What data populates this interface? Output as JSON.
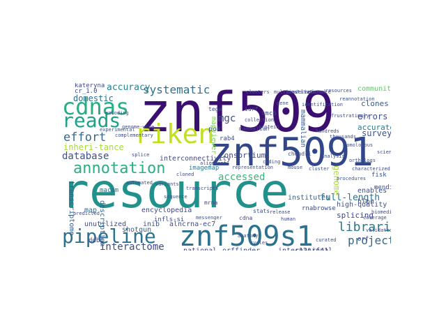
{
  "words": [
    {
      "text": "resource",
      "color": "#21918c"
    },
    {
      "text": "znf509",
      "color": "#3b0f70"
    },
    {
      "text": "znf5091",
      "color": "#31468b"
    },
    {
      "text": "znf509s1",
      "color": "#2c728e"
    },
    {
      "text": "riken",
      "color": "#c2df23"
    },
    {
      "text": "cdnas",
      "color": "#27ad81"
    },
    {
      "text": "reads",
      "color": "#1fa187"
    },
    {
      "text": "pipeline",
      "color": "#2c728e"
    },
    {
      "text": "annotation",
      "color": "#2ab07f"
    },
    {
      "text": "systematic",
      "color": "#2d708e"
    },
    {
      "text": "effort",
      "color": "#30698e"
    },
    {
      "text": "database",
      "color": "#3b518b"
    },
    {
      "text": "accuracy",
      "color": "#26828e"
    },
    {
      "text": "domestic",
      "color": "#2e6e8e"
    },
    {
      "text": "mgc",
      "color": "#3e4a89"
    },
    {
      "text": "accessed",
      "color": "#35b779"
    },
    {
      "text": "libraries",
      "color": "#2a788e"
    },
    {
      "text": "project",
      "color": "#31688e"
    },
    {
      "text": "full-length",
      "color": "#2c728e"
    },
    {
      "text": "interactome",
      "color": "#3e4989"
    },
    {
      "text": "surveyed",
      "color": "#3b528b"
    },
    {
      "text": "errors",
      "color": "#3e4c8a"
    },
    {
      "text": "clones",
      "color": "#365c8d"
    },
    {
      "text": "accurate",
      "color": "#2a788e"
    },
    {
      "text": "community",
      "color": "#5ec962"
    },
    {
      "text": "consortium",
      "color": "#3f4788"
    },
    {
      "text": "interconnectivity",
      "color": "#404688"
    },
    {
      "text": "institutes",
      "color": "#33638d"
    },
    {
      "text": "splicing",
      "color": "#414487"
    },
    {
      "text": "high-quality",
      "color": "#3a548c"
    },
    {
      "text": "enables",
      "color": "#3e4a89"
    },
    {
      "text": "international",
      "color": "#3e4a89"
    },
    {
      "text": "national",
      "color": "#404588"
    },
    {
      "text": "orffinder",
      "color": "#3b528b"
    },
    {
      "text": "shotgun",
      "color": "#365d8d"
    },
    {
      "text": "unutilized",
      "color": "#3d4e8a"
    },
    {
      "text": "encyclopedia",
      "color": "#404688"
    },
    {
      "text": "mammalian",
      "color": "#38598c"
    },
    {
      "text": "description",
      "color": "#33638d"
    },
    {
      "text": "transcriptome",
      "color": "#365c8d"
    },
    {
      "text": "map",
      "color": "#2d708e"
    },
    {
      "text": "inib",
      "color": "#3b528b"
    },
    {
      "text": "macam",
      "color": "#2d708e"
    },
    {
      "text": "pok",
      "color": "#3b528b"
    },
    {
      "text": "rab4",
      "color": "#3e4989"
    },
    {
      "text": "tmc6",
      "color": "#3e4989"
    },
    {
      "text": "orf",
      "color": "#3e4a89"
    },
    {
      "text": "genome",
      "color": "#addc30"
    },
    {
      "text": "hlpn",
      "color": "#3b528b"
    },
    {
      "text": "mendi",
      "color": "#3d4e8a"
    },
    {
      "text": "c12orf41",
      "color": "#3e4989"
    },
    {
      "text": "alncrna-ec7",
      "color": "#3e4a89"
    },
    {
      "text": "infls-si",
      "color": "#3e4989"
    },
    {
      "text": "rnabrowse",
      "color": "#3e4989"
    },
    {
      "text": "cr_1.0",
      "color": "#404588"
    },
    {
      "text": "kateryna",
      "color": "#3f4788"
    },
    {
      "text": "tega",
      "color": "#3e4a89"
    },
    {
      "text": "iurf",
      "color": "#3b528b"
    },
    {
      "text": "mammalian",
      "color": "#3e4a89"
    },
    {
      "text": "chondri",
      "color": "#3e4a89"
    },
    {
      "text": "inheri-tance",
      "color": "#a5db36"
    },
    {
      "text": "mapviewer",
      "color": "#7ad151"
    },
    {
      "text": "imagemap",
      "color": "#2a788e"
    },
    {
      "text": "mrna",
      "color": "#3e4989"
    },
    {
      "text": "fisk",
      "color": "#3b528b"
    },
    {
      "text": "ddbj",
      "color": "#3e4a89"
    },
    {
      "text": "cdna",
      "color": "#414487"
    },
    {
      "text": "stats",
      "color": "#3b528b"
    },
    {
      "text": "encoding",
      "color": "#3e4a89"
    },
    {
      "text": "genome-wide",
      "color": "#3e4989"
    },
    {
      "text": "splice",
      "color": "#414487"
    },
    {
      "text": "variants",
      "color": "#3e4a89"
    },
    {
      "text": "sequence",
      "color": "#3b528b"
    },
    {
      "text": "transcripts",
      "color": "#3e4989"
    },
    {
      "text": "complementary",
      "color": "#3e4a89"
    },
    {
      "text": "alignment",
      "color": "#3e4989"
    },
    {
      "text": "collection",
      "color": "#3e4a89"
    },
    {
      "text": "messenger",
      "color": "#3b528b"
    },
    {
      "text": "representation",
      "color": "#3e4a89"
    },
    {
      "text": "protein",
      "color": "#3e4989"
    },
    {
      "text": "coding",
      "color": "#3e4a89"
    },
    {
      "text": "gene",
      "color": "#3b528b"
    },
    {
      "text": "human",
      "color": "#3e4989"
    },
    {
      "text": "mouse",
      "color": "#3e4a89"
    },
    {
      "text": "identification",
      "color": "#3e4989"
    },
    {
      "text": "cluster",
      "color": "#3b528b"
    },
    {
      "text": "analysis",
      "color": "#3e4a89"
    },
    {
      "text": "release",
      "color": "#3e4989"
    },
    {
      "text": "frustratingly",
      "color": "#3e4a89"
    },
    {
      "text": "procedures",
      "color": "#3b528b"
    },
    {
      "text": "biomedical",
      "color": "#3e4989"
    },
    {
      "text": "scientific",
      "color": "#3e4a89"
    },
    {
      "text": "resources",
      "color": "#3e4989"
    },
    {
      "text": "reannotation",
      "color": "#3b528b"
    },
    {
      "text": "multiinstitutional",
      "color": "#3e4a89"
    },
    {
      "text": "mendelian",
      "color": "#3e4989"
    },
    {
      "text": "reference",
      "color": "#3e4a89"
    },
    {
      "text": "clusters",
      "color": "#3b528b"
    },
    {
      "text": "validated",
      "color": "#3e4989"
    },
    {
      "text": "curated",
      "color": "#3e4a89"
    },
    {
      "text": "predicted",
      "color": "#3e4989"
    },
    {
      "text": "experimental",
      "color": "#3b528b"
    },
    {
      "text": "automated",
      "color": "#3e4a89"
    },
    {
      "text": "cloned",
      "color": "#3e4989"
    },
    {
      "text": "cycles",
      "color": "#3e4a89"
    },
    {
      "text": "anatomy",
      "color": "#3b528b"
    },
    {
      "text": "coverage",
      "color": "#3e4989"
    },
    {
      "text": "hundreds",
      "color": "#3e4a89"
    },
    {
      "text": "thousands",
      "color": "#3e4989"
    },
    {
      "text": "homologous",
      "color": "#3b528b"
    },
    {
      "text": "orthologs",
      "color": "#3e4a89"
    },
    {
      "text": "characterized",
      "color": "#3e4989"
    }
  ]
}
